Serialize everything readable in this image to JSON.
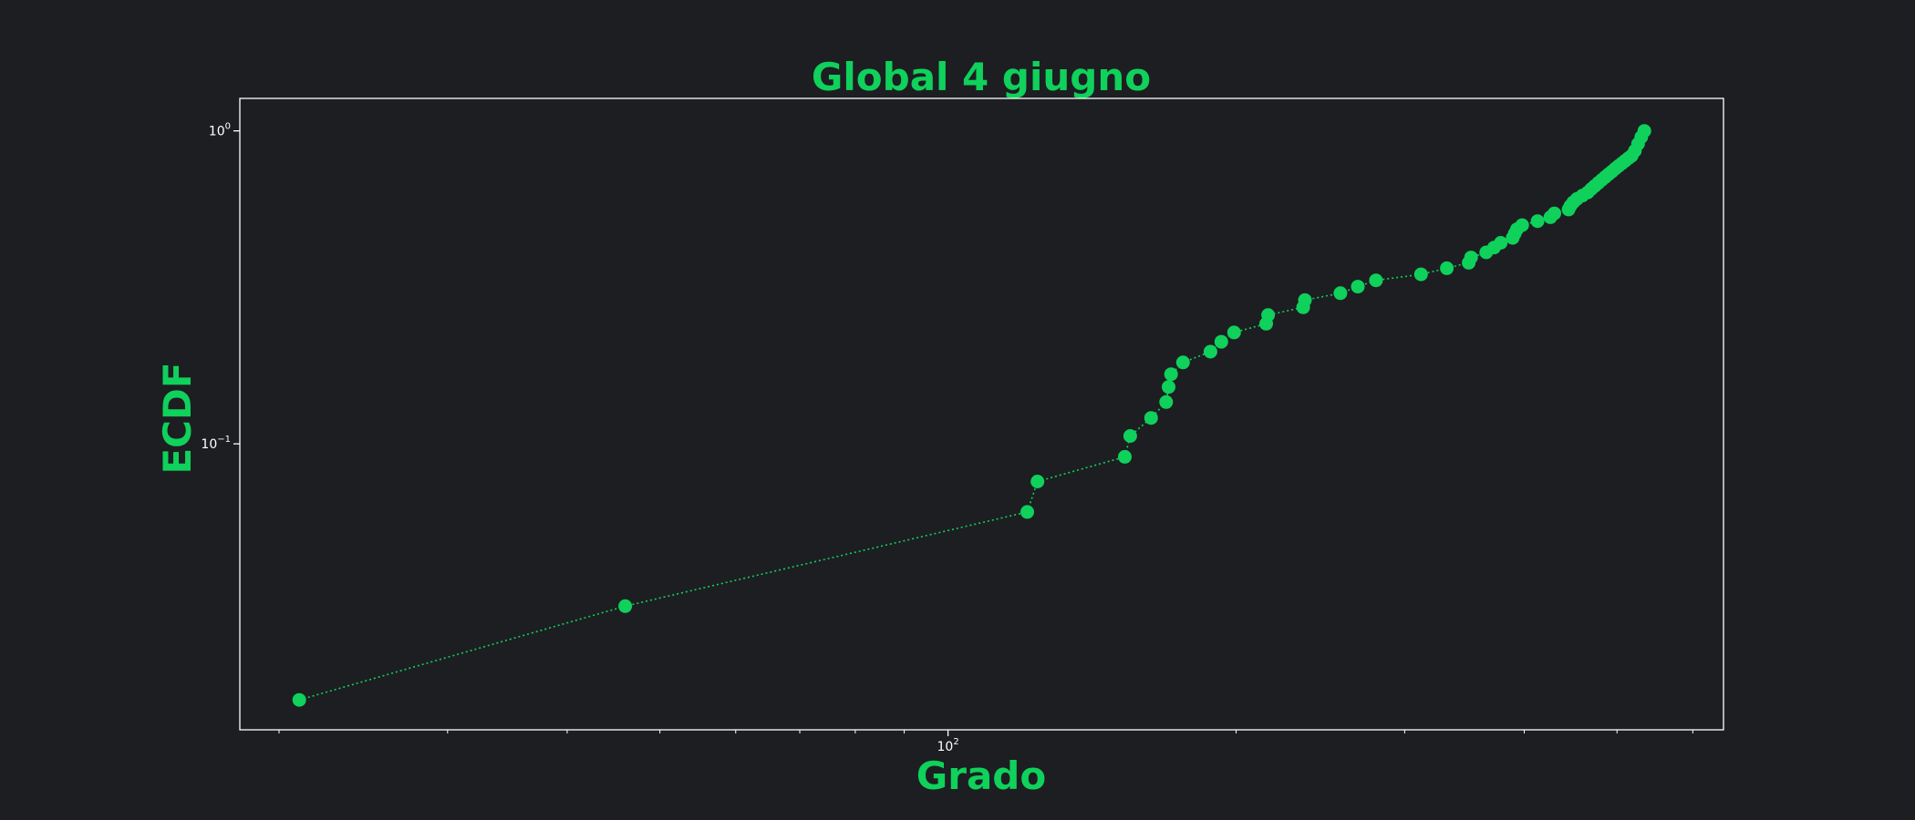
{
  "chart_data": {
    "type": "scatter",
    "title": "Global 4 giugno",
    "xlabel": "Grado",
    "ylabel": "ECDF",
    "xscale": "log",
    "yscale": "log",
    "xlim": [
      18.2,
      646
    ],
    "ylim": [
      0.0122,
      1.27
    ],
    "xticks": [
      {
        "value": 100,
        "label": "10^2"
      }
    ],
    "yticks": [
      {
        "value": 0.1,
        "label": "10^-1"
      },
      {
        "value": 1,
        "label": "10^0"
      }
    ],
    "grid": false,
    "line_style": "dotted",
    "marker": "circle",
    "series": [
      {
        "x": [
          21,
          46,
          121,
          124,
          153,
          155,
          163,
          169,
          170,
          171,
          176,
          188,
          193,
          199,
          215,
          216,
          235,
          236,
          257,
          268,
          280,
          312,
          332,
          350,
          352,
          365,
          372,
          378,
          389,
          391,
          393,
          398,
          413,
          426,
          430,
          445,
          447,
          450,
          454,
          460,
          466,
          470,
          474,
          478,
          482,
          486,
          490,
          494,
          498,
          502,
          506,
          510,
          514,
          518,
          522,
          526,
          530,
          534
        ],
        "y": [
          0.0152,
          0.0303,
          0.0606,
          0.0758,
          0.0909,
          0.106,
          0.121,
          0.136,
          0.152,
          0.167,
          0.182,
          0.197,
          0.212,
          0.227,
          0.242,
          0.258,
          0.273,
          0.288,
          0.303,
          0.318,
          0.333,
          0.348,
          0.364,
          0.379,
          0.394,
          0.409,
          0.424,
          0.439,
          0.455,
          0.47,
          0.485,
          0.5,
          0.515,
          0.53,
          0.545,
          0.561,
          0.576,
          0.591,
          0.606,
          0.621,
          0.636,
          0.652,
          0.667,
          0.682,
          0.697,
          0.712,
          0.727,
          0.742,
          0.758,
          0.773,
          0.788,
          0.803,
          0.818,
          0.833,
          0.864,
          0.909,
          0.955,
          1.0
        ]
      }
    ]
  },
  "colors": {
    "background": "#1d1e22",
    "accent": "#0fd15b",
    "axes": "#ffffff",
    "tick_text": "#ffffff"
  }
}
